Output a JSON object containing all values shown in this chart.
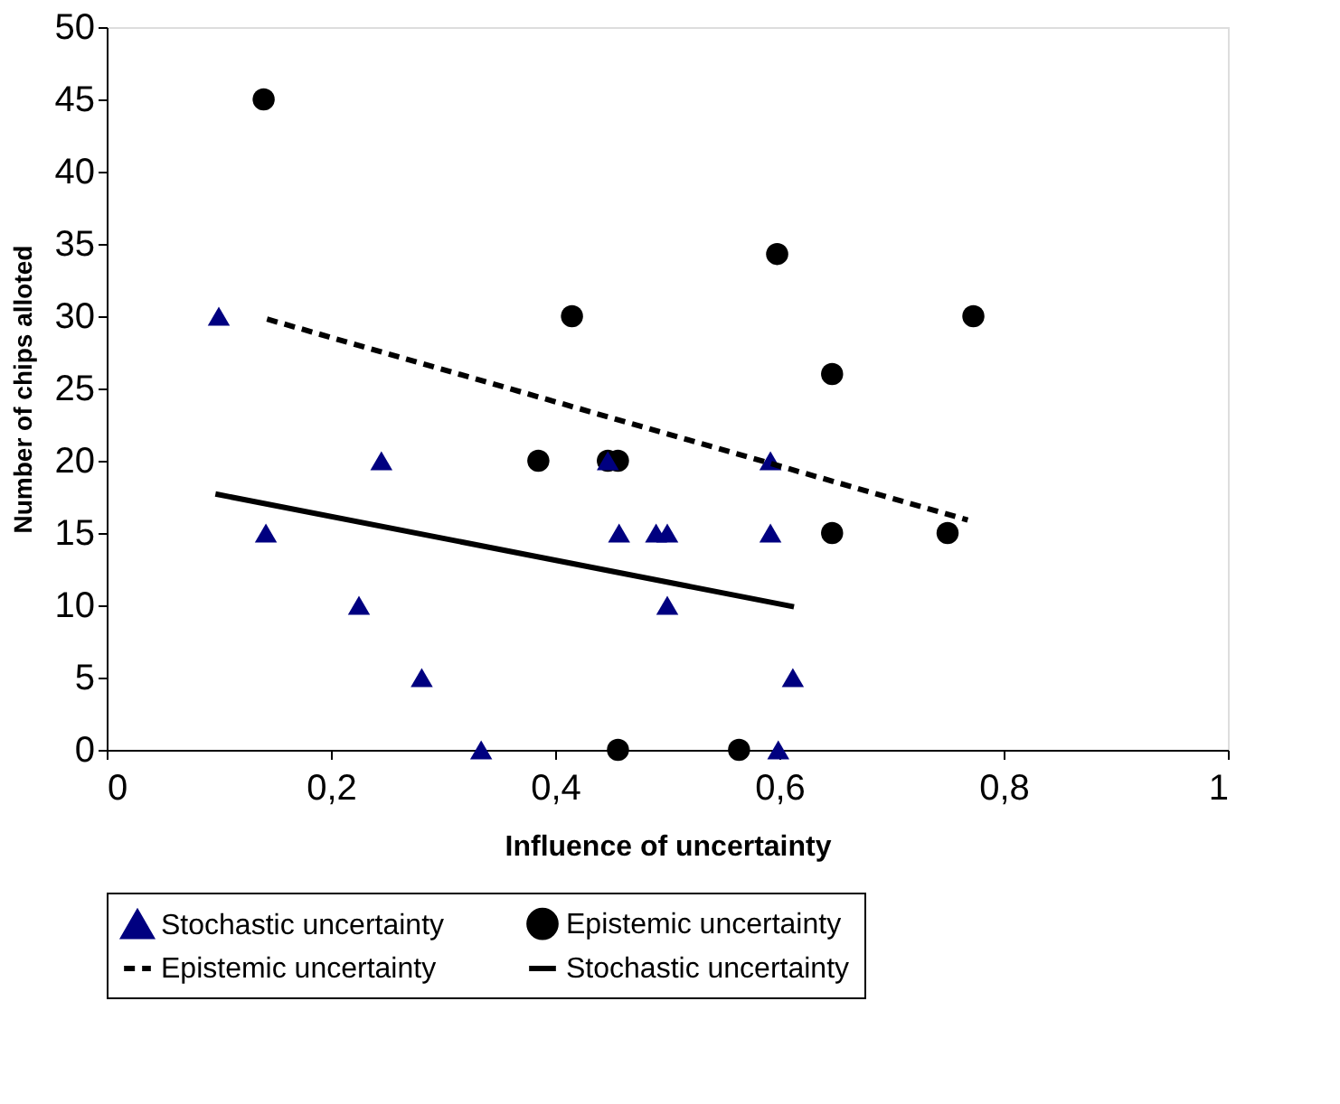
{
  "chart_data": {
    "type": "scatter",
    "xlabel": "Influence of uncertainty",
    "ylabel": "Number of chips alloted",
    "xlim": [
      0,
      1
    ],
    "ylim": [
      0,
      50
    ],
    "xticks": [
      0,
      {
        "value": 0.2,
        "label": "0,2"
      },
      {
        "value": 0.4,
        "label": "0,4"
      },
      {
        "value": 0.6,
        "label": "0,6"
      },
      {
        "value": 0.8,
        "label": "0,8"
      },
      1
    ],
    "yticks": [
      0,
      5,
      10,
      15,
      20,
      25,
      30,
      35,
      40,
      45,
      50
    ],
    "grid": false,
    "legend": "bottom",
    "series": [
      {
        "name": "Stochastic uncertainty",
        "marker": "triangle",
        "color": "#000080",
        "x": [
          0.1,
          0.245,
          0.142,
          0.225,
          0.281,
          0.334,
          0.447,
          0.457,
          0.49,
          0.5,
          0.5,
          0.592,
          0.592,
          0.612,
          0.599
        ],
        "values": [
          30,
          20,
          15,
          10,
          5,
          0,
          20,
          15,
          15,
          15,
          10,
          20,
          15,
          5,
          0
        ]
      },
      {
        "name": "Epistemic uncertainty",
        "marker": "circle",
        "color": "#000000",
        "x": [
          0.14,
          0.415,
          0.385,
          0.447,
          0.456,
          0.456,
          0.564,
          0.598,
          0.647,
          0.647,
          0.75,
          0.773
        ],
        "values": [
          45,
          30,
          20,
          20,
          20,
          0,
          0,
          34.3,
          26,
          15,
          15,
          30
        ]
      },
      {
        "name": "Epistemic uncertainty",
        "type": "line",
        "line_style": "dashed",
        "color": "#000000",
        "x": [
          0.143,
          0.768
        ],
        "values": [
          29.8,
          15.9
        ]
      },
      {
        "name": "Stochastic uncertainty",
        "type": "line",
        "line_style": "solid",
        "color": "#000000",
        "x": [
          0.097,
          0.613
        ],
        "values": [
          17.7,
          9.9
        ]
      }
    ]
  }
}
